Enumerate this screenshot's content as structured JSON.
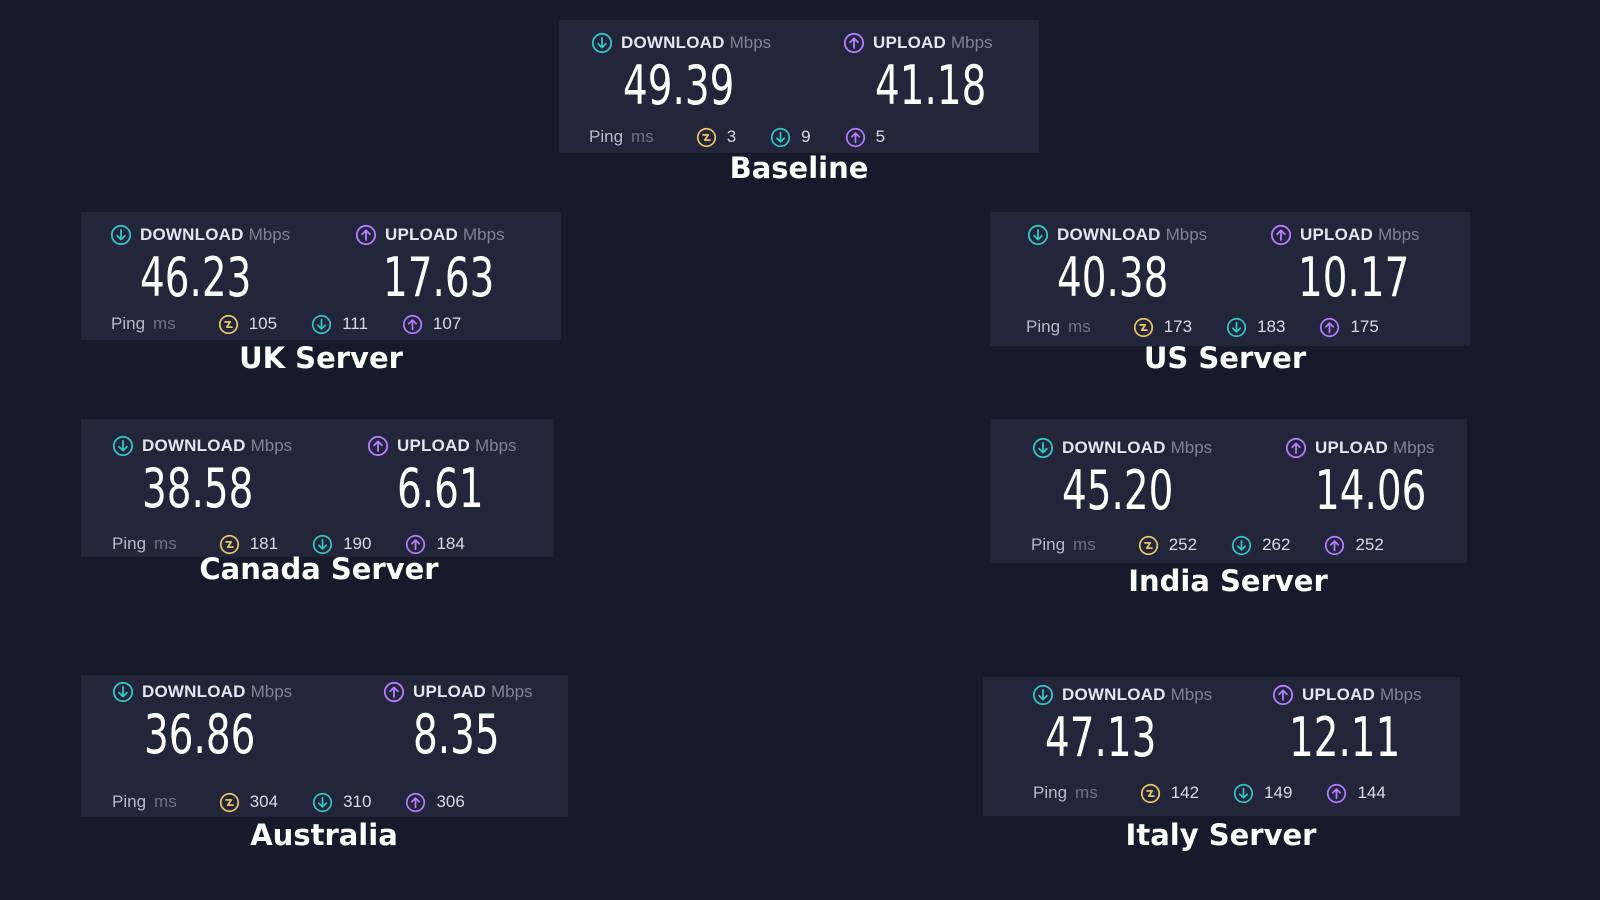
{
  "colors": {
    "background": "#171a2b",
    "card": "#23263a",
    "download": "#33c3c0",
    "upload": "#b57cff",
    "jitter": "#e8c468"
  },
  "icons": {
    "download": "download-arrow-icon",
    "upload": "upload-arrow-icon",
    "jitter": "jitter-icon"
  },
  "labels": {
    "download": "DOWNLOAD",
    "upload": "UPLOAD",
    "unit": "Mbps",
    "ping": "Ping",
    "ping_unit": "ms"
  },
  "results": {
    "baseline": {
      "caption": "Baseline",
      "download": "49.39",
      "upload": "41.18",
      "ping_jitter": "3",
      "ping_download": "9",
      "ping_upload": "5"
    },
    "uk": {
      "caption": "UK Server",
      "download": "46.23",
      "upload": "17.63",
      "ping_jitter": "105",
      "ping_download": "111",
      "ping_upload": "107"
    },
    "us": {
      "caption": "US Server",
      "download": "40.38",
      "upload": "10.17",
      "ping_jitter": "173",
      "ping_download": "183",
      "ping_upload": "175"
    },
    "canada": {
      "caption": "Canada Server",
      "download": "38.58",
      "upload": "6.61",
      "ping_jitter": "181",
      "ping_download": "190",
      "ping_upload": "184"
    },
    "india": {
      "caption": "India Server",
      "download": "45.20",
      "upload": "14.06",
      "ping_jitter": "252",
      "ping_download": "262",
      "ping_upload": "252"
    },
    "australia": {
      "caption": "Australia",
      "download": "36.86",
      "upload": "8.35",
      "ping_jitter": "304",
      "ping_download": "310",
      "ping_upload": "306"
    },
    "italy": {
      "caption": "Italy Server",
      "download": "47.13",
      "upload": "12.11",
      "ping_jitter": "142",
      "ping_download": "149",
      "ping_upload": "144"
    }
  }
}
